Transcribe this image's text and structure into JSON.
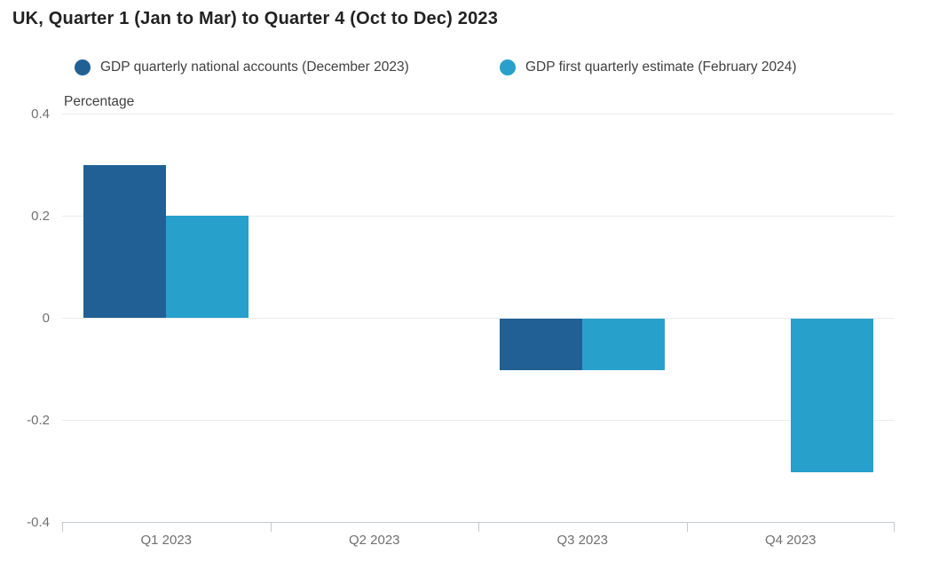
{
  "title": "UK, Quarter 1 (Jan to Mar) to Quarter 4 (Oct to Dec) 2023",
  "chart_data": {
    "type": "bar",
    "title": "UK, Quarter 1 (Jan to Mar) to Quarter 4 (Oct to Dec) 2023",
    "xlabel": "",
    "ylabel": "Percentage",
    "categories": [
      "Q1 2023",
      "Q2 2023",
      "Q3 2023",
      "Q4 2023"
    ],
    "series": [
      {
        "name": "GDP quarterly national accounts (December 2023)",
        "color": "#206095",
        "values": [
          0.3,
          0,
          -0.1,
          null
        ]
      },
      {
        "name": "GDP first quarterly estimate (February 2024)",
        "color": "#27A0CC",
        "values": [
          0.2,
          0,
          -0.1,
          -0.3
        ]
      }
    ],
    "ylim": [
      -0.4,
      0.4
    ],
    "yticks": [
      {
        "value": 0.4,
        "label": "0.4"
      },
      {
        "value": 0.2,
        "label": "0.2"
      },
      {
        "value": 0,
        "label": "0"
      },
      {
        "value": -0.2,
        "label": "-0.2"
      },
      {
        "value": -0.4,
        "label": "-0.4"
      }
    ],
    "grid": true,
    "legend_position": "top"
  },
  "colors": {
    "series_dark_blue": "#206095",
    "series_sky_blue": "#27A0CC",
    "title_text": "#222222",
    "legend_text": "#414042",
    "tick_text": "#707071",
    "gridline": "#ebebeb",
    "axis_line": "#c4c9d2",
    "background": "#ffffff"
  }
}
